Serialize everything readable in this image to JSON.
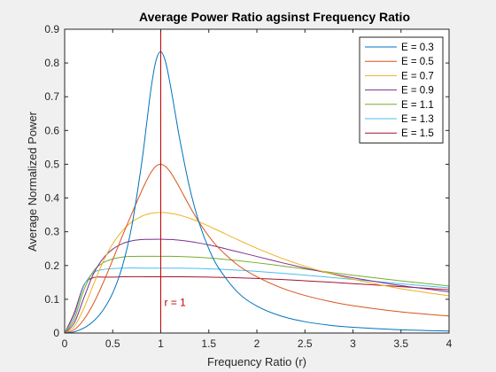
{
  "chart_data": {
    "type": "line",
    "title": "Average Power Ratio agsinst Frequency Ratio",
    "xlabel": "Frequency Ratio (r)",
    "ylabel": "Average Normalized Power",
    "xlim": [
      0,
      4
    ],
    "ylim": [
      0,
      0.9
    ],
    "xticks": [
      "0",
      "0.5",
      "1",
      "1.5",
      "2",
      "2.5",
      "3",
      "3.5",
      "4"
    ],
    "yticks": [
      "0",
      "0.1",
      "0.2",
      "0.3",
      "0.4",
      "0.5",
      "0.6",
      "0.7",
      "0.8",
      "0.9"
    ],
    "grid": false,
    "legend_position": "top-right",
    "x": [
      0,
      0.1,
      0.2,
      0.3,
      0.4,
      0.5,
      0.6,
      0.7,
      0.8,
      0.85,
      0.9,
      0.95,
      1.0,
      1.05,
      1.1,
      1.15,
      1.2,
      1.3,
      1.4,
      1.5,
      1.6,
      1.8,
      2.0,
      2.25,
      2.5,
      2.75,
      3.0,
      3.5,
      4.0
    ],
    "series": [
      {
        "name": "E = 0.3",
        "color": "#0072bd",
        "values": [
          0,
          0.0036,
          0.0148,
          0.0352,
          0.0679,
          0.1185,
          0.197,
          0.319,
          0.5005,
          0.6131,
          0.7266,
          0.8064,
          0.8333,
          0.8031,
          0.734,
          0.6521,
          0.5706,
          0.4309,
          0.3263,
          0.2497,
          0.1937,
          0.1209,
          0.08,
          0.0505,
          0.0336,
          0.0234,
          0.017,
          0.0096,
          0.006
        ]
      },
      {
        "name": "E = 0.5",
        "color": "#d95319",
        "values": [
          0,
          0.0101,
          0.04,
          0.0875,
          0.1485,
          0.2166,
          0.2873,
          0.3547,
          0.4203,
          0.4502,
          0.4765,
          0.4943,
          0.5,
          0.4932,
          0.4767,
          0.454,
          0.4285,
          0.376,
          0.3279,
          0.2869,
          0.2527,
          0.2018,
          0.1667,
          0.1344,
          0.1113,
          0.0942,
          0.0811,
          0.0627,
          0.0505
        ]
      },
      {
        "name": "E = 0.7",
        "color": "#edb120",
        "values": [
          0,
          0.0195,
          0.0736,
          0.144,
          0.2111,
          0.2643,
          0.303,
          0.3292,
          0.3457,
          0.351,
          0.3545,
          0.3566,
          0.3571,
          0.3564,
          0.3546,
          0.3521,
          0.3488,
          0.3401,
          0.3292,
          0.3167,
          0.3034,
          0.2766,
          0.251,
          0.2225,
          0.198,
          0.1771,
          0.1593,
          0.1313,
          0.1105
        ]
      },
      {
        "name": "E = 0.9",
        "color": "#7e2f8e",
        "values": [
          0,
          0.03,
          0.104,
          0.1754,
          0.2209,
          0.2484,
          0.2645,
          0.2731,
          0.2769,
          0.2774,
          0.2776,
          0.2777,
          0.2778,
          0.2776,
          0.277,
          0.2761,
          0.2749,
          0.2712,
          0.2665,
          0.2611,
          0.2548,
          0.2408,
          0.2268,
          0.2091,
          0.1926,
          0.1774,
          0.1637,
          0.1406,
          0.1221
        ]
      },
      {
        "name": "E = 1.1",
        "color": "#77ac30",
        "values": [
          0,
          0.0407,
          0.1271,
          0.1836,
          0.208,
          0.2195,
          0.225,
          0.2269,
          0.2272,
          0.2272,
          0.2272,
          0.2272,
          0.2273,
          0.2272,
          0.2272,
          0.227,
          0.2267,
          0.2257,
          0.2242,
          0.2223,
          0.22,
          0.2145,
          0.2081,
          0.1992,
          0.1896,
          0.1803,
          0.1712,
          0.1545,
          0.1395
        ]
      },
      {
        "name": "E = 1.3",
        "color": "#4dbeee",
        "values": [
          0,
          0.0508,
          0.1397,
          0.1783,
          0.188,
          0.1908,
          0.1921,
          0.1927,
          0.1923,
          0.1922,
          0.1922,
          0.1923,
          0.1923,
          0.1923,
          0.1922,
          0.1922,
          0.1921,
          0.1917,
          0.1911,
          0.1902,
          0.1891,
          0.1863,
          0.1827,
          0.1773,
          0.1714,
          0.1652,
          0.1587,
          0.1461,
          0.1338
        ]
      },
      {
        "name": "E = 1.5",
        "color": "#a2142f",
        "values": [
          0,
          0.0596,
          0.1422,
          0.1641,
          0.1655,
          0.1657,
          0.1665,
          0.1669,
          0.1668,
          0.1667,
          0.1667,
          0.1667,
          0.1667,
          0.1667,
          0.1667,
          0.1666,
          0.1665,
          0.1664,
          0.166,
          0.1656,
          0.165,
          0.1637,
          0.1618,
          0.1586,
          0.1548,
          0.1508,
          0.1464,
          0.1375,
          0.1282
        ]
      }
    ],
    "annotations": [
      {
        "type": "vline",
        "x": 1,
        "color": "#c00000",
        "label": "r = 1",
        "label_y": 0.09
      }
    ]
  }
}
